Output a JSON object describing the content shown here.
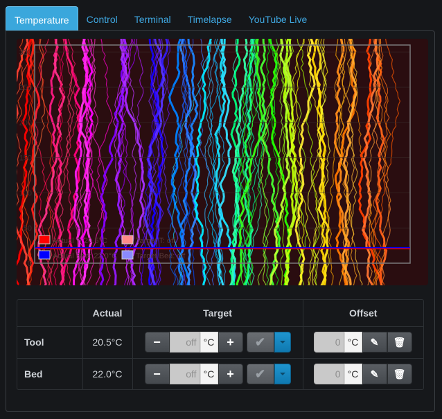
{
  "tabs": [
    {
      "label": "Temperature",
      "active": true
    },
    {
      "label": "Control",
      "active": false
    },
    {
      "label": "Terminal",
      "active": false
    },
    {
      "label": "Timelapse",
      "active": false
    },
    {
      "label": "YouTube Live",
      "active": false
    }
  ],
  "chart_data": {
    "type": "line",
    "title": "",
    "xlabel": "",
    "ylabel": "",
    "ylim": [
      0,
      310
    ],
    "y_ticks": [
      "0",
      "50",
      "100",
      "150",
      "200",
      "250",
      "300"
    ],
    "grid": true,
    "legend_placement": "bottom-left",
    "series": [
      {
        "name": "Actual T: 20.5°C",
        "color": "#ff0000",
        "values": [
          20.5
        ]
      },
      {
        "name": "Target T: off",
        "color": "#ff8a8a",
        "values": []
      },
      {
        "name": "Actual Bed: 22.0°C",
        "color": "#0000ff",
        "values": [
          22.0
        ]
      },
      {
        "name": "Target Bed: off",
        "color": "#8a8aff",
        "values": []
      }
    ]
  },
  "table": {
    "headers": [
      "",
      "Actual",
      "Target",
      "Offset"
    ],
    "rows": [
      {
        "label": "Tool",
        "actual": "20.5°C",
        "target": "off",
        "target_unit": "°C",
        "offset": "0",
        "offset_unit": "°C"
      },
      {
        "label": "Bed",
        "actual": "22.0°C",
        "target": "off",
        "target_unit": "°C",
        "offset": "0",
        "offset_unit": "°C"
      }
    ],
    "minus_label": "−",
    "plus_label": "+",
    "check_label": "✔",
    "edit_label": "✎",
    "trash_label": "🗑"
  },
  "colors": {
    "accent": "#3aa7dc",
    "chart_bg": "#2a0d10",
    "plot_border": "#7a7a7a"
  }
}
